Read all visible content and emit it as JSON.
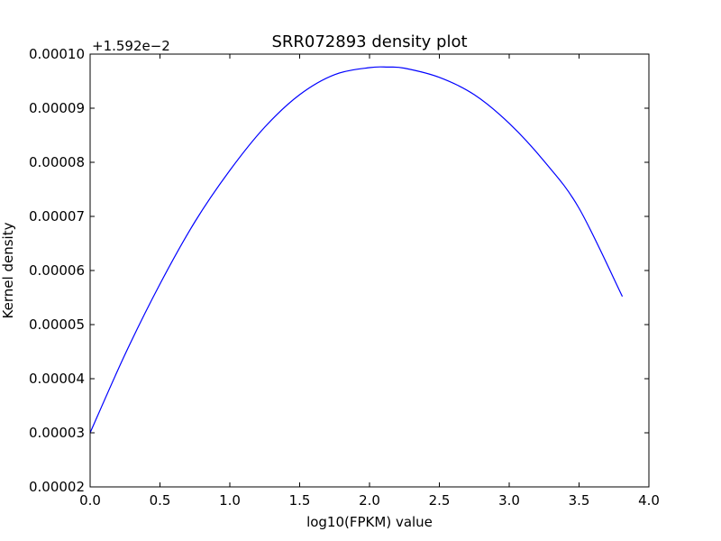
{
  "chart_data": {
    "type": "line",
    "title": "SRR072893 density plot",
    "xlabel": "log10(FPKM) value",
    "ylabel": "Kernel density",
    "offset_label": "+1.592e−2",
    "xlim": [
      0.0,
      4.0
    ],
    "ylim": [
      2e-05,
      0.0001
    ],
    "xticks": [
      "0.0",
      "0.5",
      "1.0",
      "1.5",
      "2.0",
      "2.5",
      "3.0",
      "3.5",
      "4.0"
    ],
    "yticks": [
      "0.00002",
      "0.00003",
      "0.00004",
      "0.00005",
      "0.00006",
      "0.00007",
      "0.00008",
      "0.00009",
      "0.00010"
    ],
    "grid": false,
    "line_color": "#0000ff",
    "series": [
      {
        "x": [
          0.0,
          0.25,
          0.5,
          0.75,
          1.0,
          1.25,
          1.5,
          1.75,
          2.0,
          2.13,
          2.25,
          2.5,
          2.75,
          3.0,
          3.25,
          3.5,
          3.81
        ],
        "y": [
          3e-05,
          4.45e-05,
          5.75e-05,
          6.9e-05,
          7.85e-05,
          8.65e-05,
          9.25e-05,
          9.62e-05,
          9.75e-05,
          9.76e-05,
          9.74e-05,
          9.57e-05,
          9.25e-05,
          8.72e-05,
          8.02e-05,
          7.15e-05,
          5.52e-05
        ]
      }
    ]
  }
}
